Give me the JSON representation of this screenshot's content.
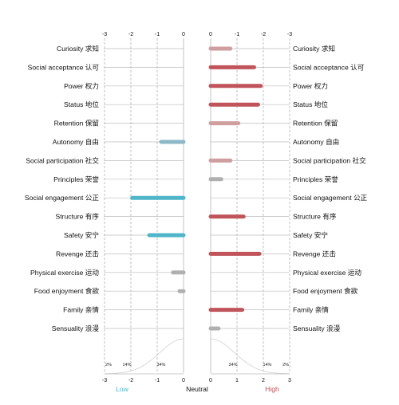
{
  "chart_data": {
    "type": "bar",
    "left_axis_ticks": [
      "-3",
      "-2",
      "-1",
      "0"
    ],
    "right_axis_ticks": [
      "0",
      "-1",
      "-2",
      "-3"
    ],
    "bottom_left_ticks": [
      "-3",
      "-2",
      "-1",
      "0"
    ],
    "bottom_right_ticks": [
      "0",
      "1",
      "2",
      "3"
    ],
    "distribution_labels_left": [
      "2%",
      "14%",
      "34%"
    ],
    "distribution_labels_right": [
      "34%",
      "14%",
      "2%"
    ],
    "footer": {
      "low": "Low",
      "neutral": "Neutral",
      "high": "High"
    },
    "colors": {
      "low": "#4fb6c9",
      "low_light": "#8db8c8",
      "high": "#c0545a",
      "high_light": "#cf9fa0",
      "neutral": "#b0b0b0",
      "curve": "#d0d0d0",
      "gridline": "#9a9a9a",
      "axis_line": "#bdbdbd"
    },
    "rows": [
      {
        "label": "Curiosity 求知",
        "low": null,
        "high": 0.75,
        "low_color": null,
        "high_color": "high_light"
      },
      {
        "label": "Social acceptance 认可",
        "low": null,
        "high": 1.65,
        "low_color": null,
        "high_color": "high"
      },
      {
        "label": "Power 权力",
        "low": null,
        "high": 1.9,
        "low_color": null,
        "high_color": "high"
      },
      {
        "label": "Status 地位",
        "low": null,
        "high": 1.8,
        "low_color": null,
        "high_color": "high"
      },
      {
        "label": "Retention 保留",
        "low": null,
        "high": 1.05,
        "low_color": null,
        "high_color": "high_light"
      },
      {
        "label": "Autonomy 自由",
        "low": 0.85,
        "high": null,
        "low_color": "low_light",
        "high_color": null
      },
      {
        "label": "Social participation 社交",
        "low": null,
        "high": 0.75,
        "low_color": null,
        "high_color": "high_light"
      },
      {
        "label": "Principles 荣誉",
        "low": null,
        "high": 0.4,
        "low_color": null,
        "high_color": "neutral"
      },
      {
        "label": "Social engagement 公正",
        "low": 1.95,
        "high": null,
        "low_color": "low",
        "high_color": null
      },
      {
        "label": "Structure 有序",
        "low": null,
        "high": 1.25,
        "low_color": null,
        "high_color": "high"
      },
      {
        "label": "Safety 安宁",
        "low": 1.3,
        "high": null,
        "low_color": "low",
        "high_color": null
      },
      {
        "label": "Revenge 还击",
        "low": null,
        "high": 1.85,
        "low_color": null,
        "high_color": "high"
      },
      {
        "label": "Physical exercise 运动",
        "low": 0.4,
        "high": null,
        "low_color": "neutral",
        "high_color": null
      },
      {
        "label": "Food enjoyment 食欲",
        "low": 0.15,
        "high": null,
        "low_color": "neutral",
        "high_color": null
      },
      {
        "label": "Family 亲情",
        "low": null,
        "high": 1.2,
        "low_color": null,
        "high_color": "high"
      },
      {
        "label": "Sensuality 浪漫",
        "low": null,
        "high": 0.3,
        "low_color": null,
        "high_color": "neutral"
      }
    ]
  }
}
